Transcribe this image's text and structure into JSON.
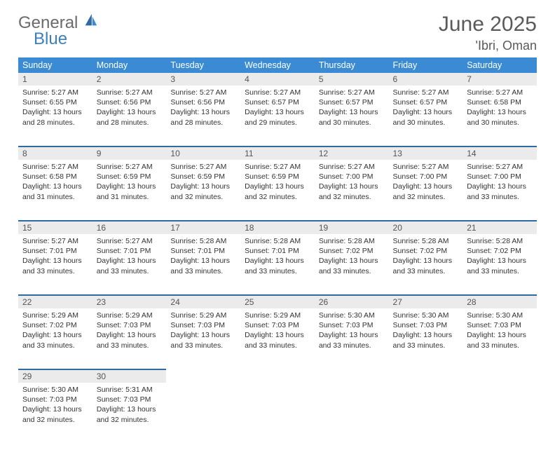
{
  "brand": {
    "line1": "General",
    "line2": "Blue"
  },
  "colors": {
    "header_bg": "#3b8bd4",
    "header_text": "#ffffff",
    "row_divider": "#2f6aa3",
    "daynum_bg": "#ebebeb",
    "text": "#333333",
    "logo_gray": "#6b6b6b",
    "logo_blue": "#3b7fbf"
  },
  "title": "June 2025",
  "location": "'Ibri, Oman",
  "weekdays": [
    "Sunday",
    "Monday",
    "Tuesday",
    "Wednesday",
    "Thursday",
    "Friday",
    "Saturday"
  ],
  "days": [
    {
      "n": 1,
      "sunrise": "5:27 AM",
      "sunset": "6:55 PM",
      "daylight": "13 hours and 28 minutes."
    },
    {
      "n": 2,
      "sunrise": "5:27 AM",
      "sunset": "6:56 PM",
      "daylight": "13 hours and 28 minutes."
    },
    {
      "n": 3,
      "sunrise": "5:27 AM",
      "sunset": "6:56 PM",
      "daylight": "13 hours and 28 minutes."
    },
    {
      "n": 4,
      "sunrise": "5:27 AM",
      "sunset": "6:57 PM",
      "daylight": "13 hours and 29 minutes."
    },
    {
      "n": 5,
      "sunrise": "5:27 AM",
      "sunset": "6:57 PM",
      "daylight": "13 hours and 30 minutes."
    },
    {
      "n": 6,
      "sunrise": "5:27 AM",
      "sunset": "6:57 PM",
      "daylight": "13 hours and 30 minutes."
    },
    {
      "n": 7,
      "sunrise": "5:27 AM",
      "sunset": "6:58 PM",
      "daylight": "13 hours and 30 minutes."
    },
    {
      "n": 8,
      "sunrise": "5:27 AM",
      "sunset": "6:58 PM",
      "daylight": "13 hours and 31 minutes."
    },
    {
      "n": 9,
      "sunrise": "5:27 AM",
      "sunset": "6:59 PM",
      "daylight": "13 hours and 31 minutes."
    },
    {
      "n": 10,
      "sunrise": "5:27 AM",
      "sunset": "6:59 PM",
      "daylight": "13 hours and 32 minutes."
    },
    {
      "n": 11,
      "sunrise": "5:27 AM",
      "sunset": "6:59 PM",
      "daylight": "13 hours and 32 minutes."
    },
    {
      "n": 12,
      "sunrise": "5:27 AM",
      "sunset": "7:00 PM",
      "daylight": "13 hours and 32 minutes."
    },
    {
      "n": 13,
      "sunrise": "5:27 AM",
      "sunset": "7:00 PM",
      "daylight": "13 hours and 32 minutes."
    },
    {
      "n": 14,
      "sunrise": "5:27 AM",
      "sunset": "7:00 PM",
      "daylight": "13 hours and 33 minutes."
    },
    {
      "n": 15,
      "sunrise": "5:27 AM",
      "sunset": "7:01 PM",
      "daylight": "13 hours and 33 minutes."
    },
    {
      "n": 16,
      "sunrise": "5:27 AM",
      "sunset": "7:01 PM",
      "daylight": "13 hours and 33 minutes."
    },
    {
      "n": 17,
      "sunrise": "5:28 AM",
      "sunset": "7:01 PM",
      "daylight": "13 hours and 33 minutes."
    },
    {
      "n": 18,
      "sunrise": "5:28 AM",
      "sunset": "7:01 PM",
      "daylight": "13 hours and 33 minutes."
    },
    {
      "n": 19,
      "sunrise": "5:28 AM",
      "sunset": "7:02 PM",
      "daylight": "13 hours and 33 minutes."
    },
    {
      "n": 20,
      "sunrise": "5:28 AM",
      "sunset": "7:02 PM",
      "daylight": "13 hours and 33 minutes."
    },
    {
      "n": 21,
      "sunrise": "5:28 AM",
      "sunset": "7:02 PM",
      "daylight": "13 hours and 33 minutes."
    },
    {
      "n": 22,
      "sunrise": "5:29 AM",
      "sunset": "7:02 PM",
      "daylight": "13 hours and 33 minutes."
    },
    {
      "n": 23,
      "sunrise": "5:29 AM",
      "sunset": "7:03 PM",
      "daylight": "13 hours and 33 minutes."
    },
    {
      "n": 24,
      "sunrise": "5:29 AM",
      "sunset": "7:03 PM",
      "daylight": "13 hours and 33 minutes."
    },
    {
      "n": 25,
      "sunrise": "5:29 AM",
      "sunset": "7:03 PM",
      "daylight": "13 hours and 33 minutes."
    },
    {
      "n": 26,
      "sunrise": "5:30 AM",
      "sunset": "7:03 PM",
      "daylight": "13 hours and 33 minutes."
    },
    {
      "n": 27,
      "sunrise": "5:30 AM",
      "sunset": "7:03 PM",
      "daylight": "13 hours and 33 minutes."
    },
    {
      "n": 28,
      "sunrise": "5:30 AM",
      "sunset": "7:03 PM",
      "daylight": "13 hours and 33 minutes."
    },
    {
      "n": 29,
      "sunrise": "5:30 AM",
      "sunset": "7:03 PM",
      "daylight": "13 hours and 32 minutes."
    },
    {
      "n": 30,
      "sunrise": "5:31 AM",
      "sunset": "7:03 PM",
      "daylight": "13 hours and 32 minutes."
    }
  ],
  "labels": {
    "sunrise": "Sunrise:",
    "sunset": "Sunset:",
    "daylight": "Daylight:"
  },
  "layout": {
    "start_weekday": 0,
    "cols": 7
  }
}
